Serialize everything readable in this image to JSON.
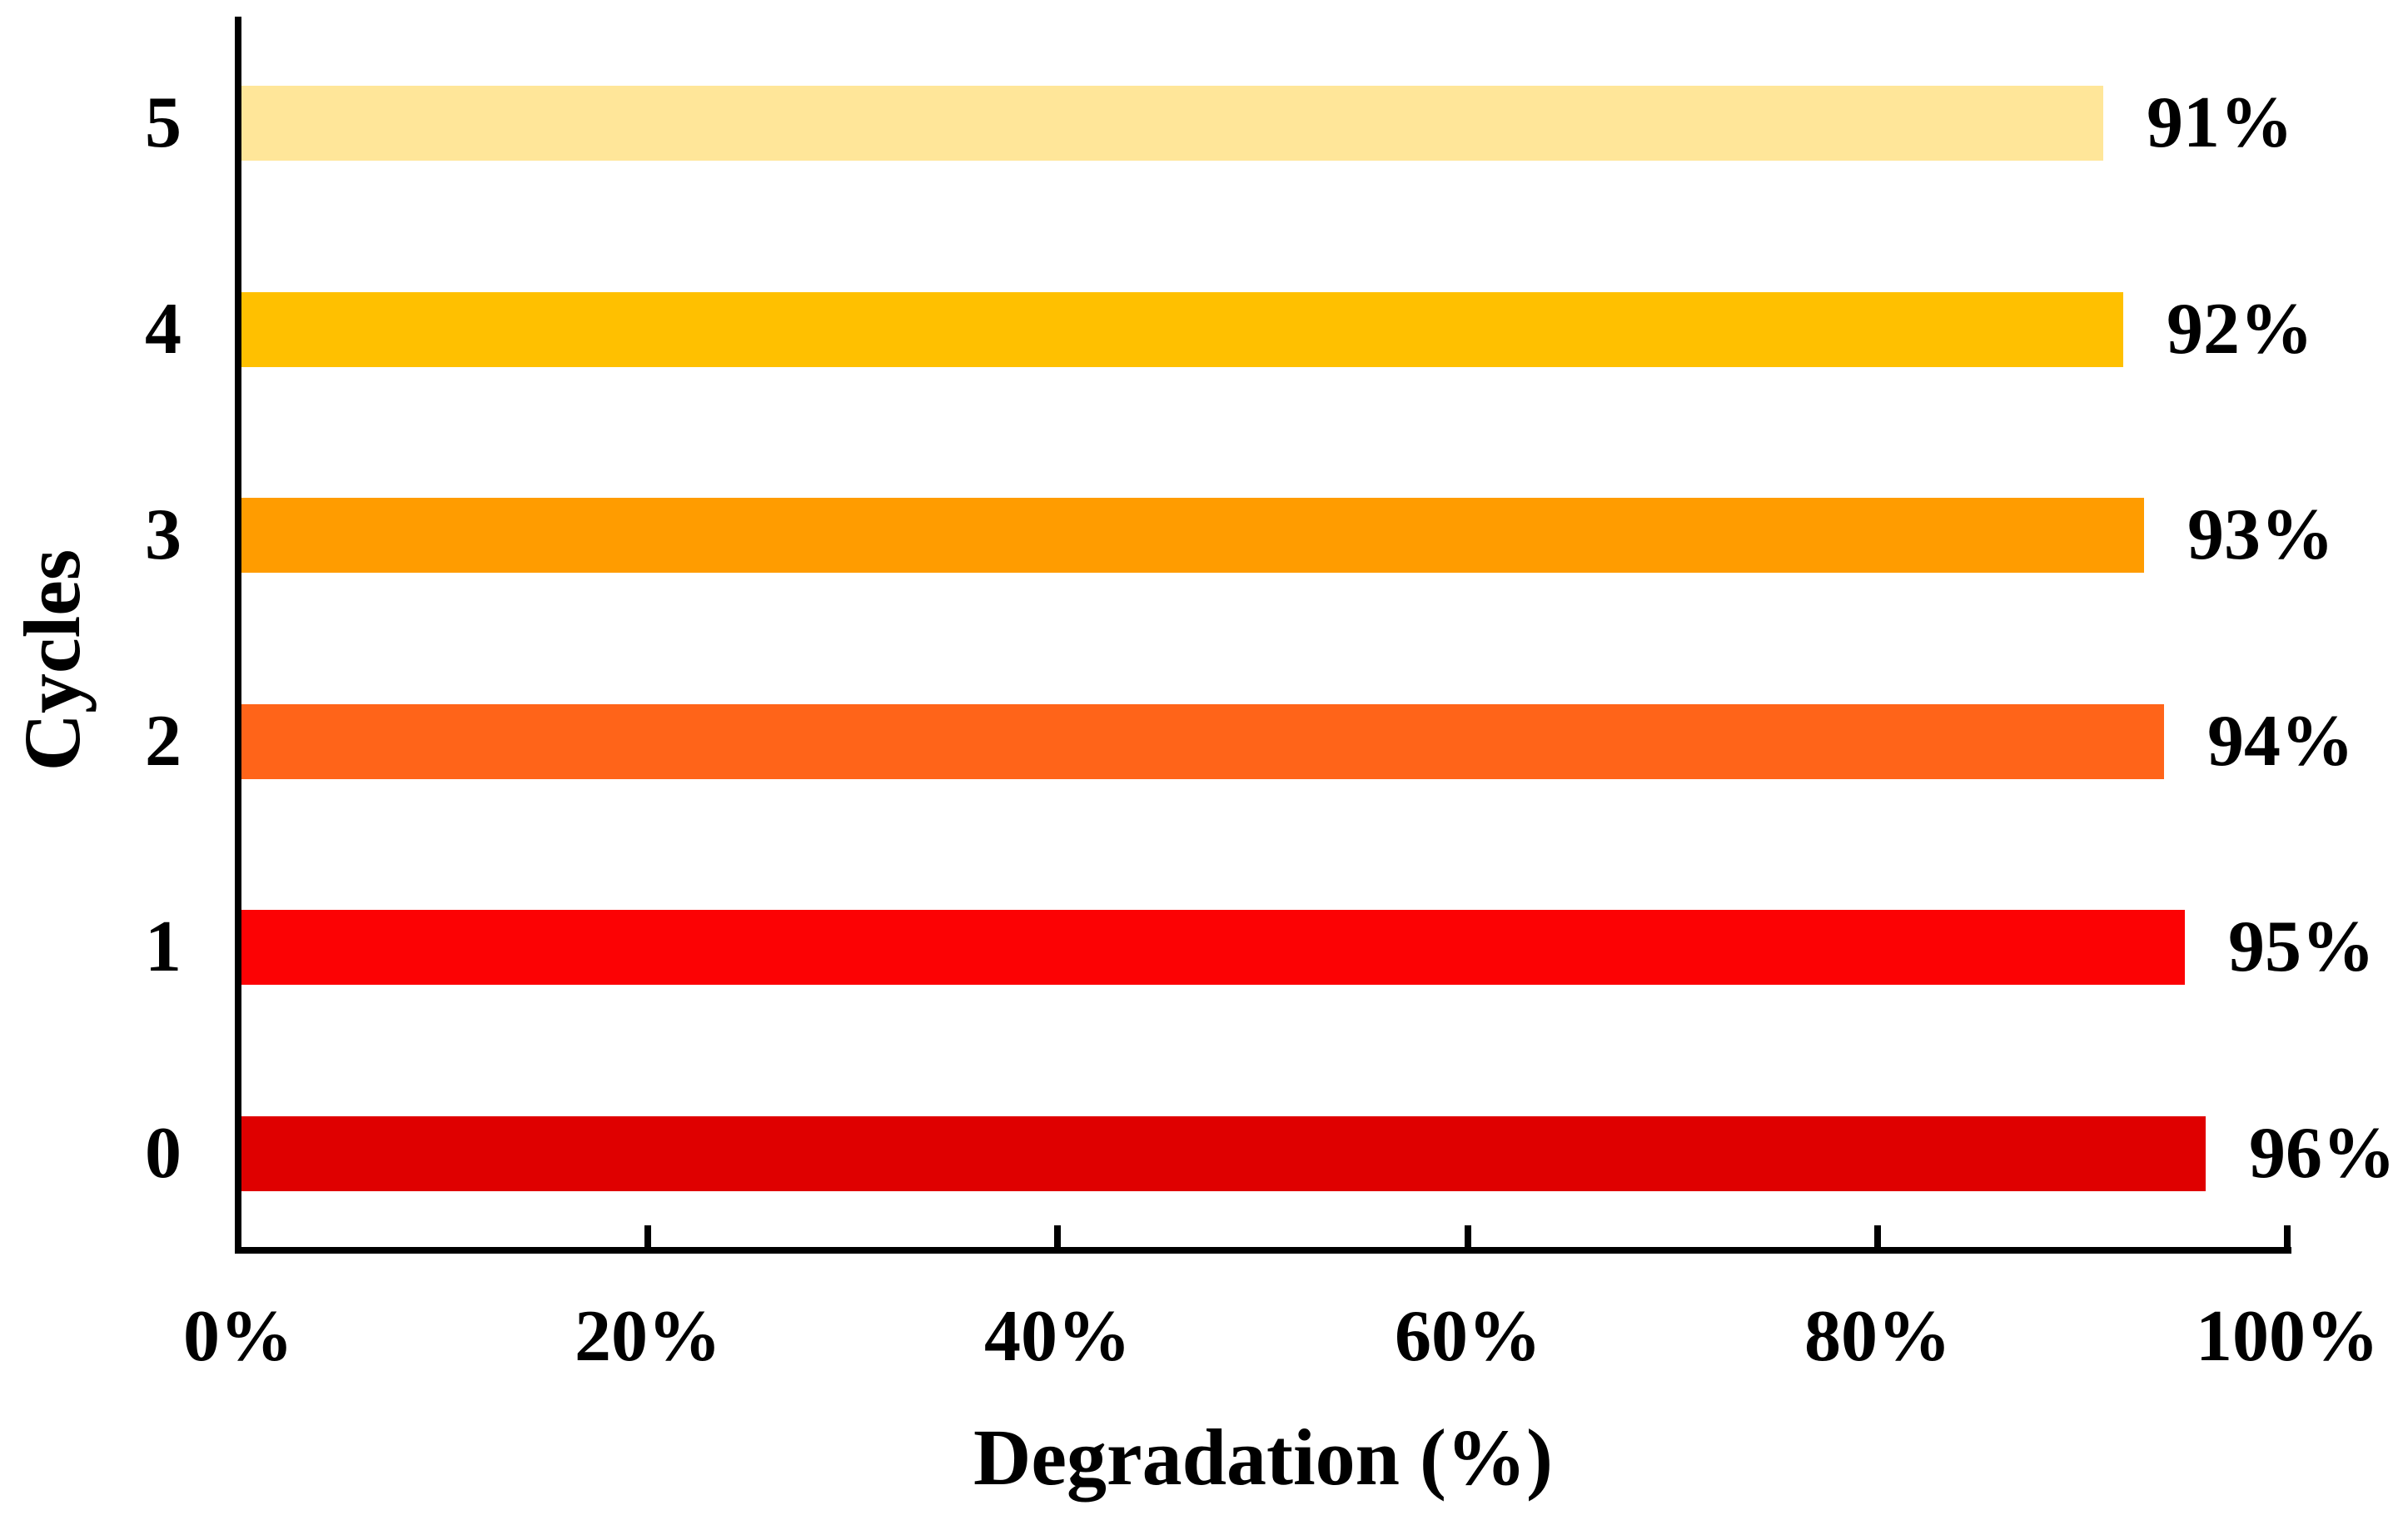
{
  "figure": {
    "background_color": "#FFFFFF",
    "axis_color": "#000000",
    "text_color": "#000000"
  },
  "chart_data": {
    "type": "bar",
    "orientation": "horizontal",
    "title": "",
    "xlabel": "Degradation (%)",
    "ylabel": "Cycles",
    "categories": [
      "5",
      "4",
      "3",
      "2",
      "1",
      "0"
    ],
    "values": [
      91,
      92,
      93,
      94,
      95,
      96
    ],
    "value_labels": [
      "91%",
      "92%",
      "93%",
      "94%",
      "95%",
      "96%"
    ],
    "bar_colors": [
      "#FFE699",
      "#FFC000",
      "#FF9C00",
      "#FF6419",
      "#FC0204",
      "#DF0000"
    ],
    "xlim": [
      0,
      100
    ],
    "x_tick_values": [
      0,
      20,
      40,
      60,
      80,
      100
    ],
    "x_tick_labels": [
      "0%",
      "20%",
      "40%",
      "60%",
      "80%",
      "100%"
    ],
    "grid": false,
    "legend": null
  }
}
